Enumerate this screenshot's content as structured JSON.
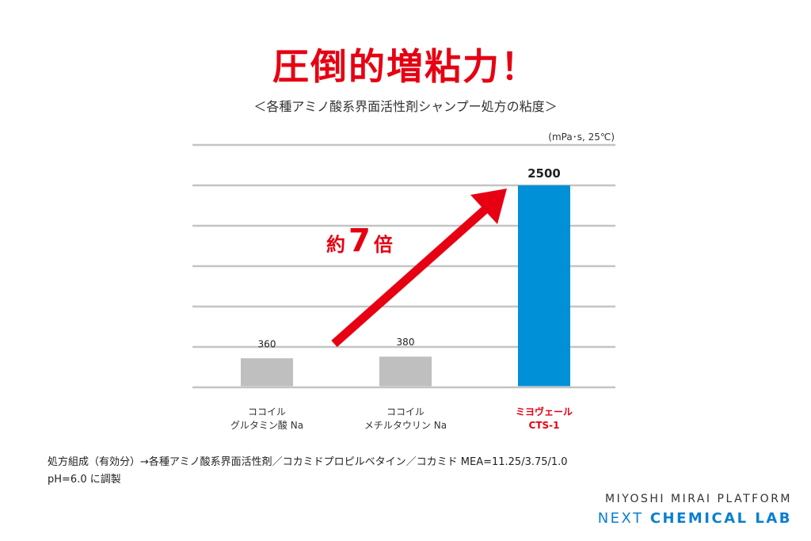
{
  "headline": "圧倒的増粘力！",
  "chart_data": {
    "type": "bar",
    "title": "＜各種アミノ酸系界面活性剤シャンプー処方の粘度＞",
    "unit_label": "(mPa･s,  25℃)",
    "categories": [
      [
        "ココイル",
        "グルタミン酸 Na"
      ],
      [
        "ココイル",
        "メチルタウリン Na"
      ],
      [
        "ミヨヴェール",
        "CTS-1"
      ]
    ],
    "values": [
      360,
      380,
      2500
    ],
    "data_labels": [
      "360",
      "380",
      "2500"
    ],
    "colors": [
      "#bfbfbf",
      "#bfbfbf",
      "#0090d8"
    ],
    "highlight_index": 2,
    "highlight_label_color": "#e60012",
    "ylim": [
      0,
      3000
    ],
    "grid": true,
    "grid_step": 500,
    "annotation": {
      "prefix": "約",
      "number": "7",
      "suffix": "倍",
      "color": "#e60012",
      "arrow": true
    }
  },
  "note": {
    "line1": "処方組成（有効分）→各種アミノ酸系界面活性剤／コカミドプロピルベタイン／コカミド MEA=11.25/3.75/1.0",
    "line2": "pH=6.0 に調製"
  },
  "brand": {
    "line1": "MIYOSHI MIRAI PLATFORM",
    "line2_a": "NEXT",
    "line2_b": "CHEMICAL LAB"
  }
}
